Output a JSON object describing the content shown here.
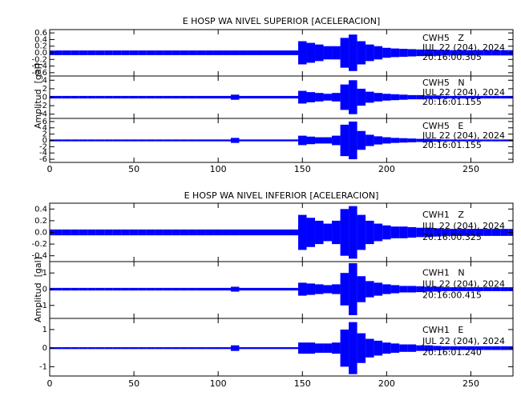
{
  "chart_data": [
    {
      "type": "seismogram",
      "title": "E HOSP WA NIVEL SUPERIOR [ACELERACION]",
      "ylabel": "Amplitud  [gal]",
      "xlim": [
        0,
        275
      ],
      "xticks": [
        0,
        50,
        100,
        150,
        200,
        250
      ],
      "x": [
        0,
        5,
        10,
        15,
        20,
        25,
        30,
        35,
        40,
        45,
        50,
        55,
        60,
        65,
        70,
        75,
        80,
        85,
        90,
        95,
        100,
        105,
        110,
        115,
        120,
        125,
        130,
        135,
        140,
        145,
        150,
        155,
        160,
        165,
        170,
        175,
        180,
        185,
        190,
        195,
        200,
        205,
        210,
        215,
        220,
        225,
        230,
        235,
        240,
        245,
        250,
        255,
        260,
        265,
        270,
        275
      ],
      "series": [
        {
          "name": "CWH5   Z",
          "date": "JUL 22 (204), 2024",
          "time": "20:16:00.305",
          "color": "#0000ff",
          "ylim": [
            -0.7,
            0.7
          ],
          "yticks": [
            0.6,
            0.4,
            0.2,
            {
              "value": 0,
              "label": "0.0"
            },
            -0.2,
            -0.4,
            -0.6
          ],
          "values": [
            0.07,
            0.07,
            0.07,
            0.07,
            0.07,
            0.07,
            0.07,
            0.07,
            0.07,
            0.07,
            0.07,
            0.07,
            0.07,
            0.07,
            0.07,
            0.07,
            0.07,
            0.07,
            0.07,
            0.07,
            0.07,
            0.07,
            0.07,
            0.07,
            0.07,
            0.07,
            0.07,
            0.07,
            0.07,
            0.07,
            0.35,
            0.3,
            0.25,
            0.2,
            0.2,
            0.45,
            0.55,
            0.35,
            0.25,
            0.2,
            0.15,
            0.13,
            0.12,
            0.11,
            0.1,
            0.1,
            0.09,
            0.08,
            0.08,
            0.08,
            0.08,
            0.08,
            0.08,
            0.08,
            0.08,
            0.08
          ]
        },
        {
          "name": "CWH5   N",
          "date": "JUL 22 (204), 2024",
          "time": "20:16:01.155",
          "color": "#0000ff",
          "ylim": [
            -5,
            5
          ],
          "yticks": [
            4,
            2,
            0,
            -2,
            -4
          ],
          "values": [
            0.3,
            0.3,
            0.3,
            0.3,
            0.3,
            0.3,
            0.3,
            0.3,
            0.3,
            0.3,
            0.3,
            0.3,
            0.3,
            0.3,
            0.3,
            0.3,
            0.3,
            0.3,
            0.3,
            0.3,
            0.3,
            0.3,
            0.6,
            0.3,
            0.3,
            0.3,
            0.3,
            0.3,
            0.3,
            0.3,
            1.5,
            1.2,
            1,
            0.8,
            1,
            3,
            4,
            2,
            1.3,
            1,
            0.8,
            0.7,
            0.6,
            0.5,
            0.5,
            0.4,
            0.4,
            0.3,
            0.3,
            0.3,
            0.3,
            0.3,
            0.3,
            0.3,
            0.3,
            0.3
          ]
        },
        {
          "name": "CWH5   E",
          "date": "JUL 22 (204), 2024",
          "time": "20:16:01.155",
          "color": "#0000ff",
          "ylim": [
            -7,
            7
          ],
          "yticks": [
            6,
            4,
            2,
            0,
            -2,
            -4,
            -6
          ],
          "values": [
            0.3,
            0.3,
            0.3,
            0.3,
            0.3,
            0.3,
            0.3,
            0.3,
            0.3,
            0.3,
            0.3,
            0.3,
            0.3,
            0.3,
            0.3,
            0.3,
            0.3,
            0.3,
            0.3,
            0.3,
            0.3,
            0.3,
            0.8,
            0.3,
            0.3,
            0.3,
            0.3,
            0.3,
            0.3,
            0.3,
            1.5,
            1.2,
            1,
            1,
            1.5,
            5,
            6,
            3,
            1.8,
            1.3,
            1,
            0.8,
            0.7,
            0.6,
            0.5,
            0.5,
            0.4,
            0.3,
            0.3,
            0.3,
            0.3,
            0.3,
            0.3,
            0.3,
            0.3,
            0.3
          ]
        }
      ]
    },
    {
      "type": "seismogram",
      "title": "E HOSP WA NIVEL INFERIOR [ACELERACION]",
      "ylabel": "Amplitud  [gal]",
      "xlim": [
        0,
        275
      ],
      "xticks": [
        0,
        50,
        100,
        150,
        200,
        250
      ],
      "x": [
        0,
        5,
        10,
        15,
        20,
        25,
        30,
        35,
        40,
        45,
        50,
        55,
        60,
        65,
        70,
        75,
        80,
        85,
        90,
        95,
        100,
        105,
        110,
        115,
        120,
        125,
        130,
        135,
        140,
        145,
        150,
        155,
        160,
        165,
        170,
        175,
        180,
        185,
        190,
        195,
        200,
        205,
        210,
        215,
        220,
        225,
        230,
        235,
        240,
        245,
        250,
        255,
        260,
        265,
        270,
        275
      ],
      "series": [
        {
          "name": "CWH1   Z",
          "date": "JUL 22 (204), 2024",
          "time": "20:16:00.325",
          "color": "#0000ff",
          "ylim": [
            -0.5,
            0.5
          ],
          "yticks": [
            0.4,
            0.2,
            {
              "value": 0,
              "label": "0.0"
            },
            -0.2,
            -0.4
          ],
          "values": [
            0.05,
            0.05,
            0.05,
            0.05,
            0.05,
            0.05,
            0.05,
            0.05,
            0.05,
            0.05,
            0.05,
            0.05,
            0.05,
            0.05,
            0.05,
            0.05,
            0.05,
            0.05,
            0.05,
            0.05,
            0.05,
            0.05,
            0.05,
            0.05,
            0.05,
            0.05,
            0.05,
            0.05,
            0.05,
            0.05,
            0.3,
            0.25,
            0.2,
            0.15,
            0.2,
            0.4,
            0.45,
            0.3,
            0.2,
            0.15,
            0.12,
            0.1,
            0.1,
            0.09,
            0.08,
            0.08,
            0.07,
            0.06,
            0.06,
            0.06,
            0.06,
            0.06,
            0.06,
            0.06,
            0.06,
            0.06
          ]
        },
        {
          "name": "CWH1   N",
          "date": "JUL 22 (204), 2024",
          "time": "20:16:00.415",
          "color": "#0000ff",
          "ylim": [
            -1.8,
            1.7
          ],
          "yticks": [
            1,
            0,
            -1
          ],
          "values": [
            0.08,
            0.08,
            0.08,
            0.08,
            0.08,
            0.08,
            0.08,
            0.08,
            0.08,
            0.08,
            0.08,
            0.08,
            0.08,
            0.08,
            0.08,
            0.08,
            0.08,
            0.08,
            0.08,
            0.08,
            0.08,
            0.08,
            0.15,
            0.08,
            0.08,
            0.08,
            0.08,
            0.08,
            0.08,
            0.08,
            0.4,
            0.35,
            0.3,
            0.25,
            0.3,
            1,
            1.6,
            0.8,
            0.5,
            0.4,
            0.3,
            0.25,
            0.2,
            0.2,
            0.18,
            0.15,
            0.15,
            0.12,
            0.12,
            0.12,
            0.12,
            0.12,
            0.12,
            0.12,
            0.12,
            0.12
          ]
        },
        {
          "name": "CWH1   E",
          "date": "JUL 22 (204), 2024",
          "time": "20:16:01.240",
          "color": "#0000ff",
          "ylim": [
            -1.5,
            1.6
          ],
          "yticks": [
            1,
            0,
            -1
          ],
          "values": [
            0.05,
            0.05,
            0.05,
            0.05,
            0.05,
            0.05,
            0.05,
            0.05,
            0.05,
            0.05,
            0.05,
            0.05,
            0.05,
            0.05,
            0.05,
            0.05,
            0.05,
            0.05,
            0.05,
            0.05,
            0.05,
            0.05,
            0.15,
            0.05,
            0.05,
            0.05,
            0.05,
            0.05,
            0.05,
            0.05,
            0.3,
            0.3,
            0.25,
            0.25,
            0.3,
            1,
            1.4,
            0.8,
            0.5,
            0.4,
            0.3,
            0.25,
            0.2,
            0.2,
            0.15,
            0.15,
            0.12,
            0.1,
            0.1,
            0.1,
            0.1,
            0.1,
            0.1,
            0.1,
            0.1,
            0.1
          ]
        }
      ]
    }
  ]
}
